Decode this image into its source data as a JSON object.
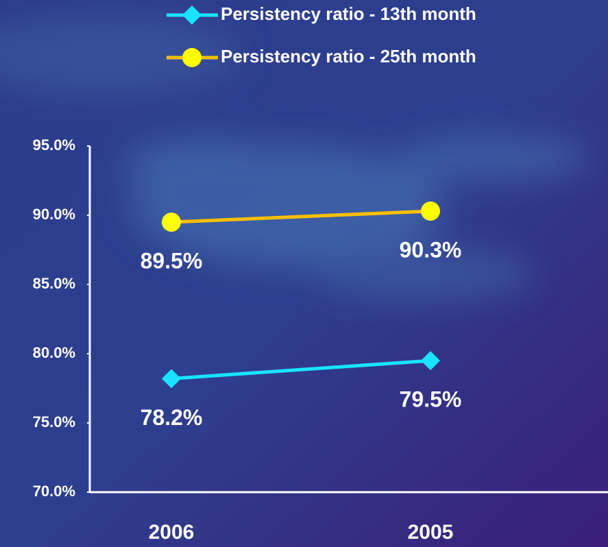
{
  "chart_data": {
    "type": "line",
    "categories": [
      "2006",
      "2005"
    ],
    "series": [
      {
        "name": "Persistency ratio - 13th month",
        "color": "#19e3ff",
        "marker": "diamond",
        "marker_color": "#19e3ff",
        "values": [
          78.2,
          79.5
        ],
        "value_labels": [
          "78.2%",
          "79.5%"
        ]
      },
      {
        "name": "Persistency ratio - 25th month",
        "color": "#ffc000",
        "marker": "circle",
        "marker_color": "#ffff00",
        "values": [
          89.5,
          90.3
        ],
        "value_labels": [
          "89.5%",
          "90.3%"
        ]
      }
    ],
    "ylim": [
      70,
      95
    ],
    "yticks": [
      {
        "value": 70,
        "label": "70.0%"
      },
      {
        "value": 75,
        "label": "75.0%"
      },
      {
        "value": 80,
        "label": "80.0%"
      },
      {
        "value": 85,
        "label": "85.0%"
      },
      {
        "value": 90,
        "label": "90.0%"
      },
      {
        "value": 95,
        "label": "95.0%"
      }
    ],
    "legend": "top",
    "grid": false
  }
}
